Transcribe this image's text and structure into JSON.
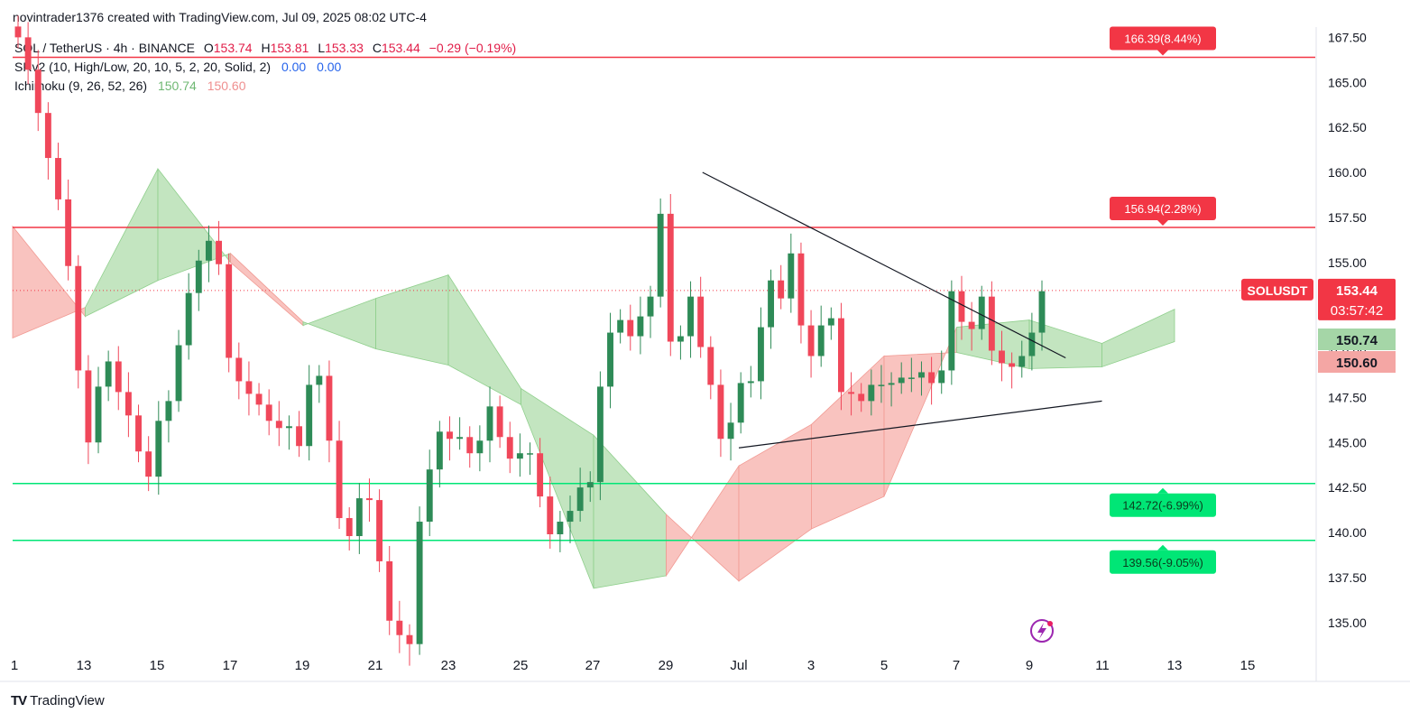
{
  "header": {
    "title": "novintrader1376 created with TradingView.com, Jul 09, 2025 08:02 UTC-4"
  },
  "legend": {
    "symbol": "SOL / TetherUS · 4h · BINANCE",
    "o_label": "O",
    "o": "153.74",
    "h_label": "H",
    "h": "153.81",
    "l_label": "L",
    "l": "153.33",
    "c_label": "C",
    "c": "153.44",
    "change": "−0.29 (−0.19%)",
    "srv2": "SRv2 (10, High/Low, 20, 10, 5, 2, 20, Solid, 2)",
    "srv2_v1": "0.00",
    "srv2_v2": "0.00",
    "ichimoku": "Ichimoku (9, 26, 52, 26)",
    "ichimoku_v1": "150.74",
    "ichimoku_v2": "150.60"
  },
  "footer": {
    "brand": "TradingView",
    "brand_icon": "tradingview-logo-icon"
  },
  "colors": {
    "up": "#2e8b57",
    "down": "#f0475a",
    "green_level": "#00e676",
    "red_level": "#f23645",
    "cloud_green": "#b8e0b5",
    "cloud_red": "#f8b9b4"
  },
  "chart_data": {
    "type": "candlestick",
    "symbol_label": "SOLUSDT",
    "last_price": "153.44",
    "countdown": "03:57:42",
    "ichimoku_badges": [
      "150.74",
      "150.60"
    ],
    "y_axis": {
      "ticks": [
        "167.50",
        "165.00",
        "162.50",
        "160.00",
        "157.50",
        "155.00",
        "152.50",
        "150.00",
        "147.50",
        "145.00",
        "142.50",
        "140.00",
        "137.50",
        "135.00"
      ],
      "range": [
        133.5,
        168.5
      ]
    },
    "x_axis": {
      "ticks": [
        "1",
        "13",
        "15",
        "17",
        "19",
        "21",
        "23",
        "25",
        "27",
        "29",
        "Jul",
        "3",
        "5",
        "7",
        "9",
        "11",
        "13",
        "15"
      ]
    },
    "levels": [
      {
        "price": 166.39,
        "label": "166.39(8.44%)",
        "kind": "resistance"
      },
      {
        "price": 156.94,
        "label": "156.94(2.28%)",
        "kind": "resistance"
      },
      {
        "price": 142.72,
        "label": "142.72(-6.99%)",
        "kind": "support"
      },
      {
        "price": 139.56,
        "label": "139.56(-9.05%)",
        "kind": "support"
      }
    ],
    "trendlines": [
      {
        "name": "upper-trendline",
        "from": [
          "Jun 30",
          160.0
        ],
        "to": [
          "Jul 10",
          149.7
        ]
      },
      {
        "name": "lower-trendline",
        "from": [
          "Jul 1",
          144.7
        ],
        "to": [
          "Jul 11",
          147.3
        ]
      }
    ],
    "closes": [
      167.5,
      165.7,
      163.3,
      160.8,
      158.5,
      154.8,
      149.0,
      145.0,
      148.1,
      149.5,
      147.8,
      146.5,
      144.5,
      143.1,
      146.2,
      147.3,
      150.4,
      153.3,
      155.1,
      156.2,
      154.9,
      149.7,
      148.4,
      147.7,
      147.1,
      146.2,
      145.8,
      145.9,
      144.8,
      148.2,
      148.7,
      145.1,
      140.8,
      139.8,
      141.9,
      141.8,
      138.4,
      135.1,
      134.3,
      133.8,
      140.6,
      143.5,
      145.6,
      145.2,
      145.3,
      144.4,
      145.1,
      147.0,
      145.3,
      144.1,
      144.4,
      144.4,
      142.0,
      139.9,
      140.6,
      141.2,
      142.5,
      142.8,
      148.1,
      151.1,
      151.8,
      150.9,
      152.0,
      153.1,
      157.7,
      150.6,
      150.9,
      153.1,
      150.3,
      148.2,
      145.2,
      146.1,
      148.3,
      148.4,
      151.4,
      154.0,
      153.0,
      155.5,
      151.5,
      149.8,
      151.5,
      151.9,
      147.8,
      147.7,
      147.3,
      148.2,
      148.2,
      148.3,
      148.6,
      148.6,
      148.9,
      148.3,
      149.0,
      153.4,
      151.7,
      151.3,
      153.1,
      150.1,
      149.4,
      149.2,
      149.8,
      151.1,
      153.4
    ],
    "ichimoku_cloud": {
      "x": [
        "Jun 11",
        "Jun 13",
        "Jun 15",
        "Jun 17",
        "Jun 19",
        "Jun 21",
        "Jun 23",
        "Jun 25",
        "Jun 27",
        "Jun 29",
        "Jul 1",
        "Jul 3",
        "Jul 5",
        "Jul 7",
        "Jul 9",
        "Jul 11",
        "Jul 13"
      ],
      "span_a": [
        150.8,
        152.5,
        160.2,
        155.0,
        151.5,
        153.0,
        154.3,
        148.0,
        145.4,
        141.0,
        137.3,
        140.2,
        142.0,
        151.4,
        151.8,
        150.5,
        152.4
      ],
      "span_b": [
        157.0,
        152.0,
        154.0,
        155.5,
        151.7,
        150.2,
        149.3,
        147.1,
        136.9,
        137.6,
        143.7,
        146.0,
        149.8,
        150.0,
        149.1,
        149.2,
        150.6
      ]
    }
  }
}
